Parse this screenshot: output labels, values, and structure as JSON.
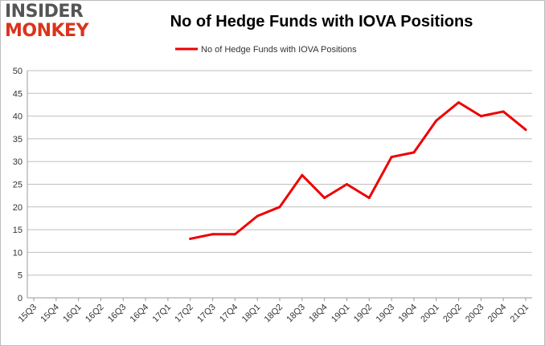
{
  "brand": {
    "logo_top": "INSIDER",
    "logo_bottom": "MONKEY",
    "logo_color_top": "#555555",
    "logo_color_bottom": "#d9341c"
  },
  "chart_data": {
    "type": "line",
    "title": "No of Hedge Funds with IOVA Positions",
    "xlabel": "",
    "ylabel": "",
    "ylim": [
      0,
      50
    ],
    "yticks": [
      0,
      5,
      10,
      15,
      20,
      25,
      30,
      35,
      40,
      45,
      50
    ],
    "categories": [
      "15Q3",
      "15Q4",
      "16Q1",
      "16Q2",
      "16Q3",
      "16Q4",
      "17Q1",
      "17Q2",
      "17Q3",
      "17Q4",
      "18Q1",
      "18Q2",
      "18Q3",
      "18Q4",
      "19Q1",
      "19Q2",
      "19Q3",
      "19Q4",
      "20Q1",
      "20Q2",
      "20Q3",
      "20Q4",
      "21Q1"
    ],
    "grid": "horizontal",
    "legend_position": "top-center",
    "series": [
      {
        "name": "No of Hedge Funds with IOVA Positions",
        "color": "#ee0000",
        "values": [
          null,
          null,
          null,
          null,
          null,
          null,
          null,
          13,
          14,
          14,
          18,
          20,
          27,
          22,
          25,
          22,
          31,
          32,
          39,
          43,
          40,
          41,
          37
        ]
      }
    ]
  }
}
